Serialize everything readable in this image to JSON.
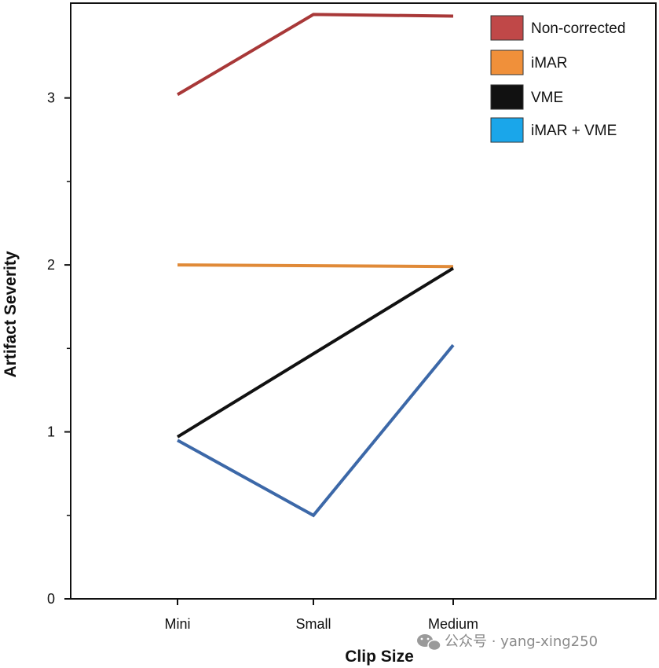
{
  "chart_data": {
    "type": "line",
    "title": "",
    "xlabel": "Clip Size",
    "ylabel": "Artifact Severity",
    "categories": [
      "Mini",
      "Small",
      "Medium"
    ],
    "ylim": [
      0,
      3.55
    ],
    "yticks_major": [
      0,
      1,
      2,
      3
    ],
    "yticks_minor": [
      0.5,
      1.5,
      2.5
    ],
    "grid": false,
    "legend_position": "top-right",
    "series": [
      {
        "name": "Non-corrected",
        "color": "#a83838",
        "legend_color": "#c04848",
        "values": [
          3.02,
          3.5,
          3.49
        ]
      },
      {
        "name": "iMAR",
        "color": "#e08a38",
        "legend_color": "#f0903a",
        "values": [
          2.0,
          null,
          1.99
        ]
      },
      {
        "name": "VME",
        "color": "#111111",
        "legend_color": "#111111",
        "values": [
          0.97,
          null,
          1.98
        ]
      },
      {
        "name": "iMAR + VME",
        "color": "#3c68a8",
        "legend_color": "#1aa6ea",
        "values": [
          0.95,
          0.5,
          1.52
        ]
      }
    ]
  },
  "watermark": {
    "icon": "wechat-icon",
    "text": "公众号 · yang-xing250"
  }
}
